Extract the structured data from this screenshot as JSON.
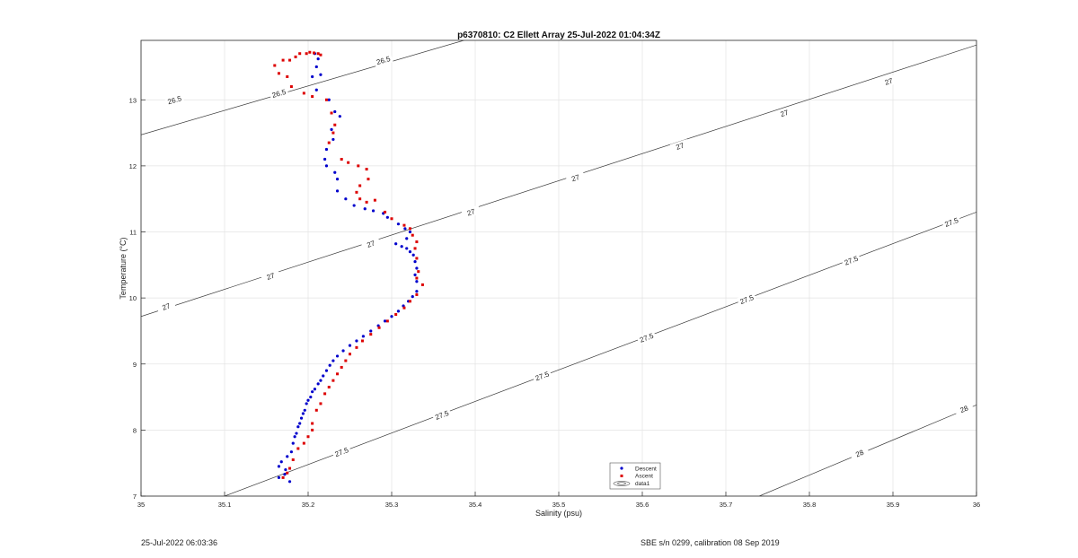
{
  "chart_data": {
    "type": "scatter",
    "title": "p6370810: C2 Ellett Array 25-Jul-2022 01:04:34Z",
    "xlabel": "Salinity (psu)",
    "ylabel": "Temperature (°C)",
    "xlim": [
      35,
      36
    ],
    "ylim": [
      7,
      13.9
    ],
    "xticks": [
      35,
      35.1,
      35.2,
      35.3,
      35.4,
      35.5,
      35.6,
      35.7,
      35.8,
      35.9,
      36
    ],
    "xtick_labels": [
      "35",
      "35.1",
      "35.2",
      "35.3",
      "35.4",
      "35.5",
      "35.6",
      "35.7",
      "35.8",
      "35.9",
      "36"
    ],
    "yticks": [
      7,
      8,
      9,
      10,
      11,
      12,
      13
    ],
    "ytick_labels": [
      "7",
      "8",
      "9",
      "10",
      "11",
      "12",
      "13"
    ],
    "grid": true,
    "legend_position": "bottom-center",
    "series": [
      {
        "name": "Descent",
        "color": "#0000cc",
        "points": [
          [
            35.165,
            7.28
          ],
          [
            35.165,
            7.45
          ],
          [
            35.168,
            7.52
          ],
          [
            35.172,
            7.33
          ],
          [
            35.173,
            7.4
          ],
          [
            35.175,
            7.6
          ],
          [
            35.178,
            7.22
          ],
          [
            35.18,
            7.67
          ],
          [
            35.182,
            7.8
          ],
          [
            35.184,
            7.9
          ],
          [
            35.186,
            7.95
          ],
          [
            35.188,
            8.05
          ],
          [
            35.19,
            8.1
          ],
          [
            35.192,
            8.18
          ],
          [
            35.194,
            8.25
          ],
          [
            35.196,
            8.3
          ],
          [
            35.198,
            8.4
          ],
          [
            35.2,
            8.45
          ],
          [
            35.203,
            8.5
          ],
          [
            35.205,
            8.58
          ],
          [
            35.208,
            8.62
          ],
          [
            35.212,
            8.7
          ],
          [
            35.215,
            8.75
          ],
          [
            35.218,
            8.82
          ],
          [
            35.222,
            8.9
          ],
          [
            35.226,
            8.98
          ],
          [
            35.23,
            9.05
          ],
          [
            35.235,
            9.12
          ],
          [
            35.242,
            9.2
          ],
          [
            35.25,
            9.28
          ],
          [
            35.258,
            9.35
          ],
          [
            35.266,
            9.42
          ],
          [
            35.275,
            9.5
          ],
          [
            35.284,
            9.58
          ],
          [
            35.292,
            9.65
          ],
          [
            35.3,
            9.72
          ],
          [
            35.308,
            9.8
          ],
          [
            35.314,
            9.88
          ],
          [
            35.32,
            9.95
          ],
          [
            35.325,
            10.02
          ],
          [
            35.33,
            10.1
          ],
          [
            35.33,
            10.25
          ],
          [
            35.328,
            10.35
          ],
          [
            35.33,
            10.45
          ],
          [
            35.328,
            10.55
          ],
          [
            35.326,
            10.65
          ],
          [
            35.322,
            10.7
          ],
          [
            35.318,
            10.75
          ],
          [
            35.312,
            10.78
          ],
          [
            35.305,
            10.82
          ],
          [
            35.318,
            10.9
          ],
          [
            35.322,
            11.0
          ],
          [
            35.316,
            11.05
          ],
          [
            35.308,
            11.12
          ],
          [
            35.295,
            11.22
          ],
          [
            35.29,
            11.28
          ],
          [
            35.278,
            11.32
          ],
          [
            35.268,
            11.35
          ],
          [
            35.255,
            11.4
          ],
          [
            35.245,
            11.5
          ],
          [
            35.235,
            11.62
          ],
          [
            35.235,
            11.8
          ],
          [
            35.232,
            11.9
          ],
          [
            35.222,
            12.0
          ],
          [
            35.22,
            12.1
          ],
          [
            35.222,
            12.25
          ],
          [
            35.23,
            12.4
          ],
          [
            35.228,
            12.55
          ],
          [
            35.238,
            12.75
          ],
          [
            35.232,
            12.82
          ],
          [
            35.225,
            13.0
          ],
          [
            35.21,
            13.15
          ],
          [
            35.205,
            13.35
          ],
          [
            35.215,
            13.38
          ],
          [
            35.21,
            13.5
          ],
          [
            35.212,
            13.62
          ],
          [
            35.208,
            13.7
          ]
        ]
      },
      {
        "name": "Ascent",
        "color": "#dd0000",
        "points": [
          [
            35.17,
            7.28
          ],
          [
            35.175,
            7.35
          ],
          [
            35.178,
            7.42
          ],
          [
            35.182,
            7.55
          ],
          [
            35.188,
            7.72
          ],
          [
            35.195,
            7.8
          ],
          [
            35.2,
            7.9
          ],
          [
            35.205,
            8.0
          ],
          [
            35.205,
            8.1
          ],
          [
            35.21,
            8.3
          ],
          [
            35.215,
            8.4
          ],
          [
            35.22,
            8.55
          ],
          [
            35.225,
            8.65
          ],
          [
            35.23,
            8.75
          ],
          [
            35.235,
            8.85
          ],
          [
            35.24,
            8.95
          ],
          [
            35.245,
            9.05
          ],
          [
            35.25,
            9.15
          ],
          [
            35.258,
            9.25
          ],
          [
            35.265,
            9.35
          ],
          [
            35.275,
            9.45
          ],
          [
            35.285,
            9.55
          ],
          [
            35.295,
            9.65
          ],
          [
            35.305,
            9.75
          ],
          [
            35.315,
            9.85
          ],
          [
            35.322,
            9.95
          ],
          [
            35.33,
            10.05
          ],
          [
            35.337,
            10.2
          ],
          [
            35.33,
            10.3
          ],
          [
            35.332,
            10.4
          ],
          [
            35.33,
            10.6
          ],
          [
            35.328,
            10.75
          ],
          [
            35.33,
            10.85
          ],
          [
            35.325,
            10.95
          ],
          [
            35.322,
            11.05
          ],
          [
            35.315,
            11.1
          ],
          [
            35.3,
            11.2
          ],
          [
            35.292,
            11.3
          ],
          [
            35.28,
            11.48
          ],
          [
            35.27,
            11.45
          ],
          [
            35.262,
            11.5
          ],
          [
            35.258,
            11.6
          ],
          [
            35.262,
            11.7
          ],
          [
            35.272,
            11.8
          ],
          [
            35.27,
            11.95
          ],
          [
            35.26,
            12.0
          ],
          [
            35.248,
            12.05
          ],
          [
            35.24,
            12.1
          ],
          [
            35.225,
            12.35
          ],
          [
            35.23,
            12.5
          ],
          [
            35.232,
            12.62
          ],
          [
            35.228,
            12.8
          ],
          [
            35.222,
            13.0
          ],
          [
            35.205,
            13.05
          ],
          [
            35.195,
            13.1
          ],
          [
            35.18,
            13.2
          ],
          [
            35.175,
            13.35
          ],
          [
            35.165,
            13.4
          ],
          [
            35.16,
            13.52
          ],
          [
            35.17,
            13.6
          ],
          [
            35.178,
            13.6
          ],
          [
            35.185,
            13.65
          ],
          [
            35.19,
            13.7
          ],
          [
            35.198,
            13.7
          ],
          [
            35.202,
            13.72
          ],
          [
            35.207,
            13.71
          ],
          [
            35.212,
            13.7
          ],
          [
            35.215,
            13.68
          ]
        ]
      }
    ],
    "isopycnals": [
      {
        "label": "26.5",
        "x": [
          35,
          35.4
        ],
        "y": [
          12.47,
          13.95
        ],
        "label_at": [
          [
            35.04,
            13.0
          ],
          [
            35.165,
            13.1
          ],
          [
            35.29,
            13.6
          ]
        ]
      },
      {
        "label": "27",
        "x": [
          35,
          36
        ],
        "y": [
          9.72,
          13.83
        ],
        "label_at": [
          [
            35.03,
            9.87
          ],
          [
            35.155,
            10.33
          ],
          [
            35.275,
            10.82
          ],
          [
            35.395,
            11.3
          ],
          [
            35.52,
            11.82
          ],
          [
            35.645,
            12.3
          ],
          [
            35.77,
            12.8
          ],
          [
            35.895,
            13.28
          ]
        ]
      },
      {
        "label": "27.5",
        "x": [
          35.1,
          36
        ],
        "y": [
          7.0,
          11.3
        ],
        "label_at": [
          [
            35.24,
            7.67
          ],
          [
            35.36,
            8.23
          ],
          [
            35.48,
            8.82
          ],
          [
            35.605,
            9.4
          ],
          [
            35.725,
            9.98
          ],
          [
            35.85,
            10.57
          ],
          [
            35.97,
            11.15
          ]
        ]
      },
      {
        "label": "28",
        "x": [
          35.74,
          36
        ],
        "y": [
          7.0,
          8.38
        ],
        "label_at": [
          [
            35.86,
            7.65
          ],
          [
            35.985,
            8.32
          ]
        ]
      }
    ]
  },
  "legend": {
    "items": [
      {
        "label": "Descent",
        "color": "#0000cc"
      },
      {
        "label": "Ascent",
        "color": "#dd0000"
      },
      {
        "label": "data1",
        "color": "#555555"
      }
    ]
  },
  "footer": {
    "left": "25-Jul-2022 06:03:36",
    "right": "SBE s/n 0299, calibration 08 Sep 2019"
  }
}
